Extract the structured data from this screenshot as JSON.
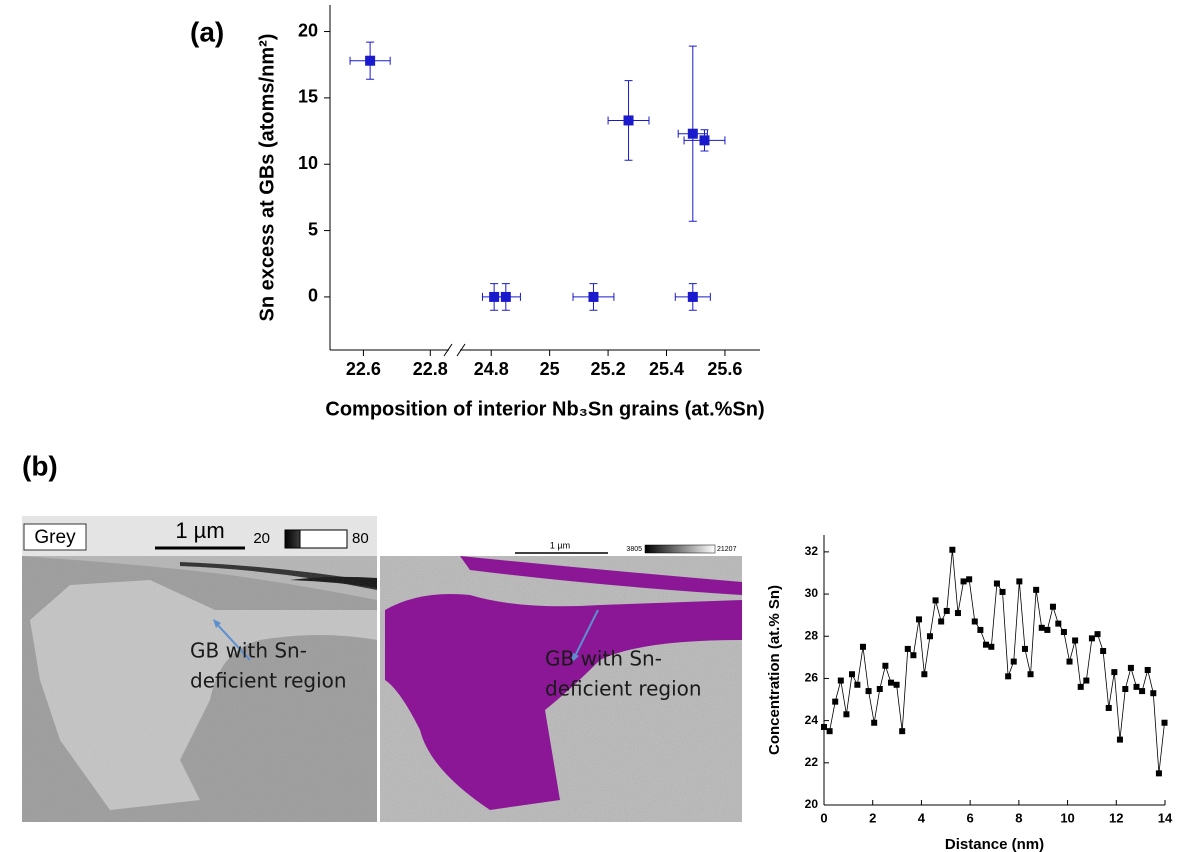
{
  "panels": {
    "a": "(a)",
    "b": "(b)"
  },
  "chart_data": [
    {
      "type": "scatter",
      "xlabel": "Composition of interior Nb₃Sn grains (at.%Sn)",
      "ylabel": "Sn excess at GBs (atoms/nm²)",
      "x": [
        22.62,
        24.81,
        24.85,
        25.15,
        25.27,
        25.49,
        25.53,
        25.49
      ],
      "values": [
        17.8,
        0,
        0,
        0,
        13.3,
        12.3,
        11.8,
        0
      ],
      "xerr": [
        0.06,
        0.04,
        0.05,
        0.07,
        0.07,
        0.05,
        0.07,
        0.06
      ],
      "yerr": [
        1.4,
        1,
        1,
        1,
        3,
        6.6,
        0.8,
        1
      ],
      "color": "#1a1acc",
      "xlim": [
        22.5,
        25.72
      ],
      "xbreak": [
        22.85,
        24.7
      ],
      "xticks": [
        22.6,
        22.8,
        24.8,
        25.0,
        25.2,
        25.4,
        25.6
      ],
      "ylim": [
        -4,
        22
      ],
      "yticks": [
        0,
        5,
        10,
        15,
        20
      ]
    },
    {
      "type": "line",
      "xlabel": "Distance (nm)",
      "ylabel": "Concentration (at.% Sn)",
      "x": [
        0,
        0.23,
        0.46,
        0.69,
        0.92,
        1.15,
        1.37,
        1.6,
        1.83,
        2.06,
        2.29,
        2.52,
        2.75,
        2.98,
        3.21,
        3.44,
        3.67,
        3.9,
        4.12,
        4.35,
        4.58,
        4.81,
        5.04,
        5.27,
        5.5,
        5.73,
        5.96,
        6.19,
        6.42,
        6.65,
        6.87,
        7.1,
        7.33,
        7.56,
        7.79,
        8.02,
        8.25,
        8.48,
        8.71,
        8.94,
        9.17,
        9.4,
        9.62,
        9.85,
        10.08,
        10.31,
        10.54,
        10.77,
        11.0,
        11.23,
        11.46,
        11.69,
        11.92,
        12.15,
        12.37,
        12.6,
        12.83,
        13.06,
        13.29,
        13.52,
        13.75,
        13.98
      ],
      "values": [
        23.7,
        23.5,
        24.9,
        25.9,
        24.3,
        26.2,
        25.7,
        27.5,
        25.4,
        23.9,
        25.5,
        26.6,
        25.8,
        25.7,
        23.5,
        27.4,
        27.1,
        28.8,
        26.2,
        28.0,
        29.7,
        28.7,
        29.2,
        32.1,
        29.1,
        30.6,
        30.7,
        28.7,
        28.3,
        27.6,
        27.5,
        30.5,
        30.1,
        26.1,
        26.8,
        30.6,
        27.4,
        26.2,
        30.2,
        28.4,
        28.3,
        29.4,
        28.6,
        28.2,
        26.8,
        27.8,
        25.6,
        25.9,
        27.9,
        28.1,
        27.3,
        24.6,
        26.3,
        23.1,
        25.5,
        26.5,
        25.6,
        25.4,
        26.4,
        25.3,
        21.5,
        23.9
      ],
      "color": "#000000",
      "xlim": [
        0,
        14
      ],
      "xticks": [
        0,
        2,
        4,
        6,
        8,
        10,
        12,
        14
      ],
      "ylim": [
        20,
        32.8
      ],
      "yticks": [
        20,
        22,
        24,
        26,
        28,
        30,
        32
      ]
    }
  ],
  "images": [
    {
      "mode": "Grey",
      "scale": "1 µm",
      "range_min": "20",
      "range_max": "80",
      "annotation": [
        "GB with Sn-",
        "deficient region"
      ]
    },
    {
      "scale": "1 µm",
      "range_min": "3805",
      "range_max": "21207",
      "annotation": [
        "GB with Sn-",
        "deficient region"
      ]
    }
  ]
}
